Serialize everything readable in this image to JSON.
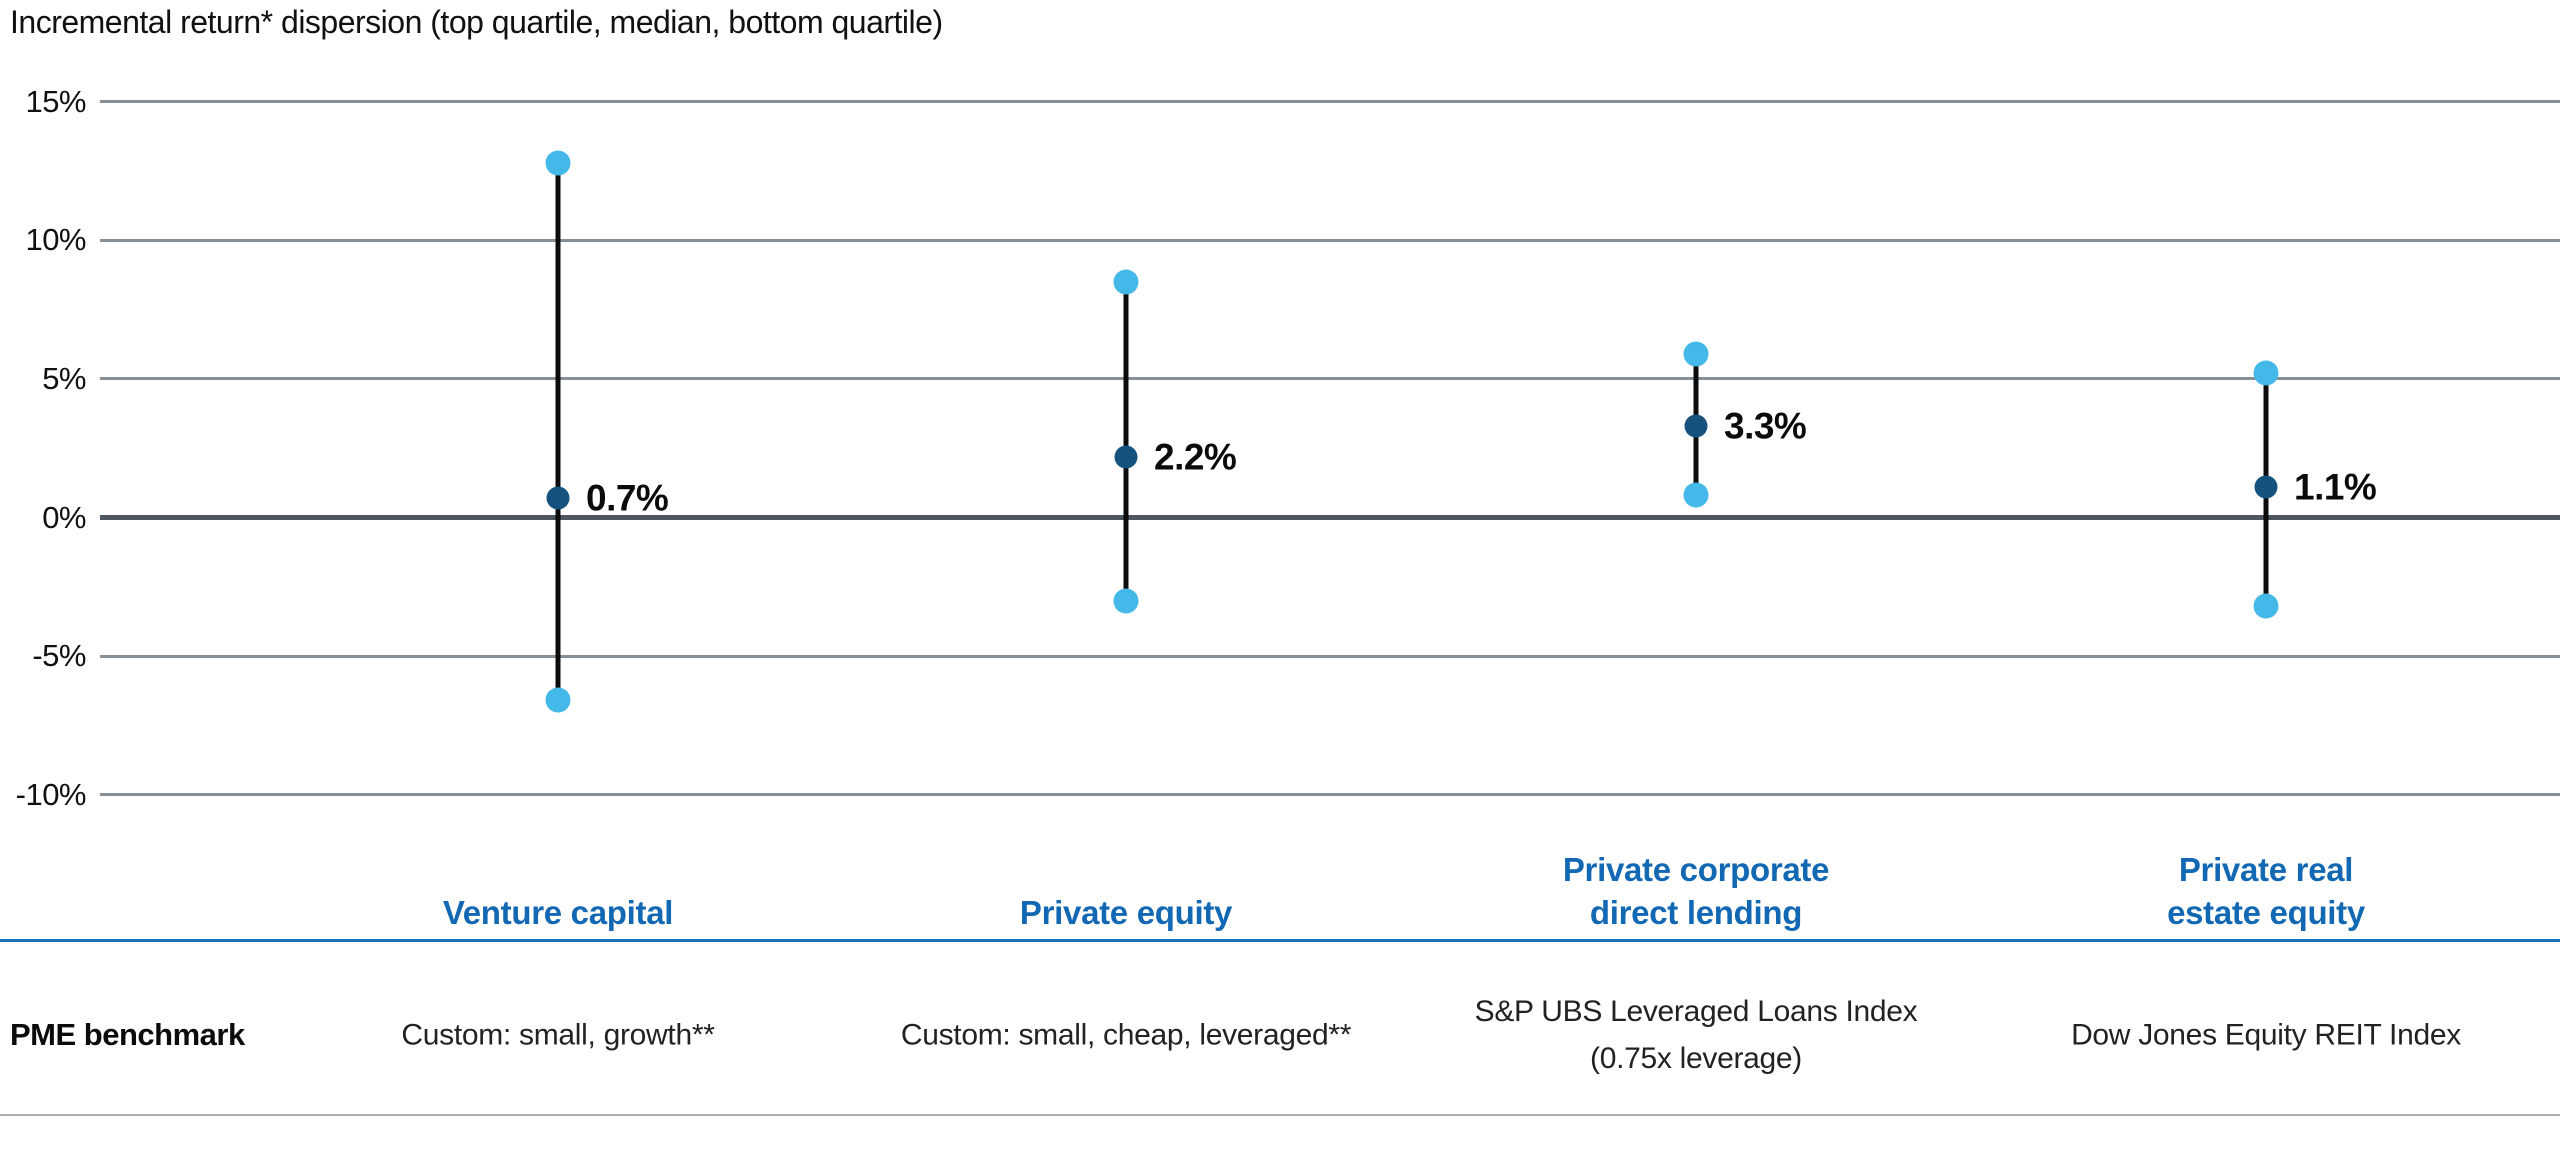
{
  "title": "Incremental return* dispersion (top quartile, median, bottom quartile)",
  "colors": {
    "light_dot": "#44b8e8",
    "dark_dot": "#15537e",
    "range_line": "#0b0b0b",
    "category_label_blue": "#1268b3",
    "divider_blue": "#1b74b8",
    "gridline_gray": "#868e96",
    "zero_line_gray": "#4e5761",
    "bottom_divider_gray": "#aab0b5"
  },
  "chart_data": {
    "type": "scatter",
    "subtype": "dot-range-dispersion",
    "title": "Incremental return* dispersion (top quartile, median, bottom quartile)",
    "ylabel": "",
    "xlabel": "",
    "ylim": [
      -10,
      15
    ],
    "grid": true,
    "y_ticks": [
      {
        "label": "15%",
        "value": 15
      },
      {
        "label": "10%",
        "value": 10
      },
      {
        "label": "5%",
        "value": 5
      },
      {
        "label": "0%",
        "value": 0
      },
      {
        "label": "-5%",
        "value": -5
      },
      {
        "label": "-10%",
        "value": -10
      }
    ],
    "categories": [
      {
        "lines": [
          "Venture capital"
        ]
      },
      {
        "lines": [
          "Private equity"
        ]
      },
      {
        "lines": [
          "Private corporate",
          "direct lending"
        ]
      },
      {
        "lines": [
          "Private real",
          "estate equity"
        ]
      }
    ],
    "series": [
      {
        "name": "Venture capital",
        "top_quartile": 12.8,
        "median": 0.7,
        "bottom_quartile": -6.6,
        "median_label": "0.7%"
      },
      {
        "name": "Private equity",
        "top_quartile": 8.5,
        "median": 2.2,
        "bottom_quartile": -3.0,
        "median_label": "2.2%"
      },
      {
        "name": "Private corporate direct lending",
        "top_quartile": 5.9,
        "median": 3.3,
        "bottom_quartile": 0.8,
        "median_label": "3.3%"
      },
      {
        "name": "Private real estate equity",
        "top_quartile": 5.2,
        "median": 1.1,
        "bottom_quartile": -3.2,
        "median_label": "1.1%"
      }
    ]
  },
  "benchmark_row": {
    "label": "PME benchmark",
    "values": [
      {
        "lines": [
          "Custom: small, growth**"
        ]
      },
      {
        "lines": [
          "Custom: small, cheap, leveraged**"
        ]
      },
      {
        "lines": [
          "S&P UBS Leveraged Loans Index",
          "(0.75x leverage)"
        ]
      },
      {
        "lines": [
          "Dow Jones Equity REIT Index"
        ]
      }
    ]
  }
}
